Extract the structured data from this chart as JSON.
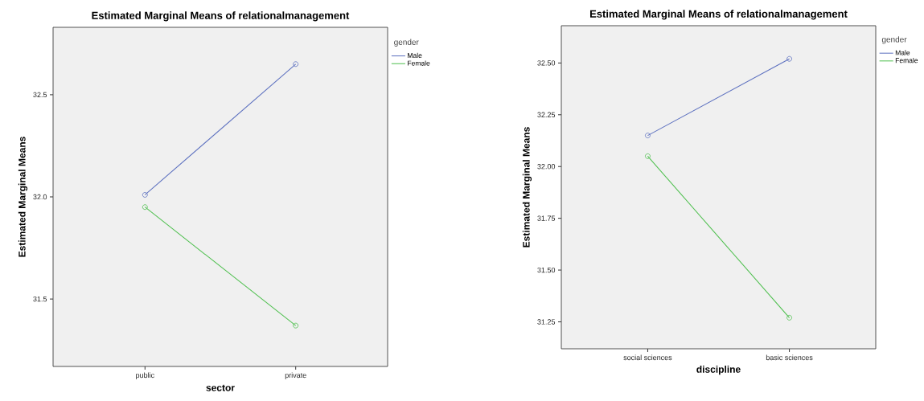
{
  "chart_data": [
    {
      "type": "line",
      "title": "Estimated Marginal Means of relationalmanagement",
      "xlabel": "sector",
      "ylabel": "Estimated Marginal Means",
      "legend_title": "gender",
      "categories": [
        "public",
        "private"
      ],
      "series": [
        {
          "name": "Male",
          "color": "#5b6fbf",
          "values": [
            32.01,
            32.65
          ]
        },
        {
          "name": "Female",
          "color": "#4cbf4c",
          "values": [
            31.95,
            31.37
          ]
        }
      ],
      "ylim": [
        31.17,
        32.83
      ],
      "yticks": [
        {
          "value": 31.5,
          "label": "31.5"
        },
        {
          "value": 32.0,
          "label": "32.0"
        },
        {
          "value": 32.5,
          "label": "32.5"
        }
      ],
      "legend": "top right",
      "marker": "circle",
      "grid": false
    },
    {
      "type": "line",
      "title": "Estimated Marginal Means of relationalmanagement",
      "xlabel": "discipline",
      "ylabel": "Estimated Marginal Means",
      "legend_title": "gender",
      "categories": [
        "social sciences",
        "basic sciences"
      ],
      "series": [
        {
          "name": "Male",
          "color": "#5b6fbf",
          "values": [
            32.15,
            32.52
          ]
        },
        {
          "name": "Female",
          "color": "#4cbf4c",
          "values": [
            32.05,
            31.27
          ]
        }
      ],
      "ylim": [
        31.12,
        32.68
      ],
      "yticks": [
        {
          "value": 31.25,
          "label": "31.25"
        },
        {
          "value": 31.5,
          "label": "31.50"
        },
        {
          "value": 31.75,
          "label": "31.75"
        },
        {
          "value": 32.0,
          "label": "32.00"
        },
        {
          "value": 32.25,
          "label": "32.25"
        },
        {
          "value": 32.5,
          "label": "32.50"
        }
      ],
      "legend": "top right",
      "marker": "circle",
      "grid": false
    }
  ]
}
